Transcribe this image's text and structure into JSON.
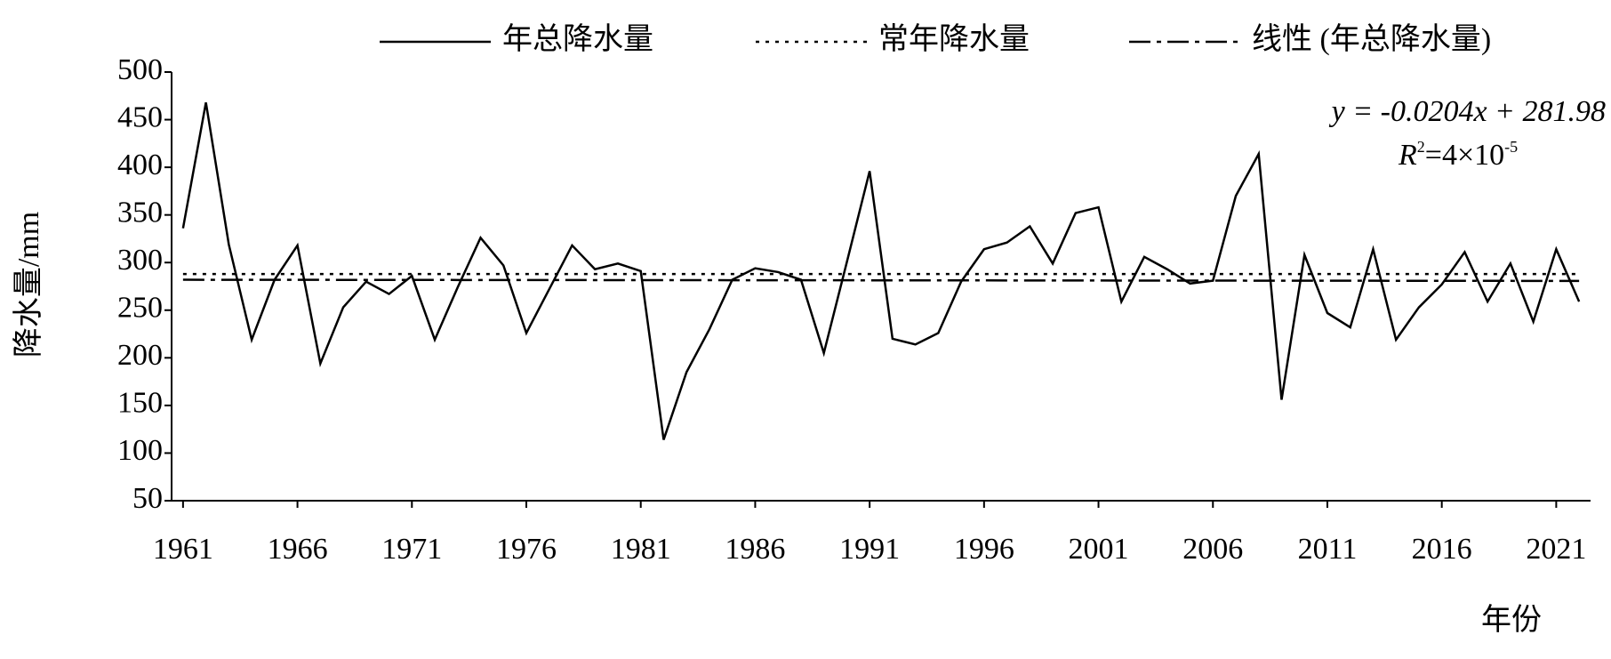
{
  "chart_data": {
    "type": "line",
    "x_label": "年份",
    "y_label": "降水量/mm",
    "x": [
      1961,
      1962,
      1963,
      1964,
      1965,
      1966,
      1967,
      1968,
      1969,
      1970,
      1971,
      1972,
      1973,
      1974,
      1975,
      1976,
      1977,
      1978,
      1979,
      1980,
      1981,
      1982,
      1983,
      1984,
      1985,
      1986,
      1987,
      1988,
      1989,
      1990,
      1991,
      1992,
      1993,
      1994,
      1995,
      1996,
      1997,
      1998,
      1999,
      2000,
      2001,
      2002,
      2003,
      2004,
      2005,
      2006,
      2007,
      2008,
      2009,
      2010,
      2011,
      2012,
      2013,
      2014,
      2015,
      2016,
      2017,
      2018,
      2019,
      2020,
      2021,
      2022
    ],
    "series": [
      {
        "name": "年总降水量",
        "color": "#000000",
        "style": "solid",
        "values": [
          336,
          468,
          319,
          219,
          282,
          318,
          194,
          253,
          280,
          267,
          286,
          219,
          274,
          326,
          297,
          226,
          272,
          318,
          293,
          299,
          291,
          114,
          185,
          230,
          282,
          294,
          290,
          282,
          205,
          300,
          396,
          220,
          214,
          226,
          280,
          314,
          321,
          338,
          299,
          352,
          358,
          259,
          306,
          293,
          278,
          281,
          370,
          414,
          156,
          308,
          247,
          232,
          314,
          219,
          253,
          277,
          311,
          259,
          299,
          238,
          314,
          259
        ]
      },
      {
        "name": "常年降水量",
        "color": "#000000",
        "style": "dotted",
        "values": [
          288,
          288,
          288,
          288,
          288,
          288,
          288,
          288,
          288,
          288,
          288,
          288,
          288,
          288,
          288,
          288,
          288,
          288,
          288,
          288,
          288,
          288,
          288,
          288,
          288,
          288,
          288,
          288,
          288,
          288,
          288,
          288,
          288,
          288,
          288,
          288,
          288,
          288,
          288,
          288,
          288,
          288,
          288,
          288,
          288,
          288,
          288,
          288,
          288,
          288,
          288,
          288,
          288,
          288,
          288,
          288,
          288,
          288,
          288,
          288,
          288,
          288
        ]
      },
      {
        "name": "线性 (年总降水量)",
        "color": "#000000",
        "style": "dashdot",
        "values": [
          281.96,
          281.94,
          281.92,
          281.9,
          281.88,
          281.86,
          281.84,
          281.82,
          281.8,
          281.78,
          281.76,
          281.74,
          281.71,
          281.69,
          281.67,
          281.65,
          281.63,
          281.61,
          281.59,
          281.57,
          281.55,
          281.53,
          281.51,
          281.49,
          281.47,
          281.45,
          281.43,
          281.41,
          281.39,
          281.37,
          281.35,
          281.33,
          281.31,
          281.29,
          281.27,
          281.25,
          281.23,
          281.2,
          281.18,
          281.16,
          281.14,
          281.12,
          281.1,
          281.08,
          281.06,
          281.04,
          281.02,
          281.0,
          280.98,
          280.96,
          280.94,
          280.92,
          280.9,
          280.88,
          280.86,
          280.84,
          280.82,
          280.8,
          280.78,
          280.76,
          280.74,
          280.72
        ]
      }
    ],
    "annotations": {
      "equation": "y = -0.0204x + 281.98",
      "r2": [
        "R",
        "2",
        "=4×10",
        "-5"
      ]
    },
    "xlim": [
      1960.5,
      2022.5
    ],
    "xticks": [
      1961,
      1966,
      1971,
      1976,
      1981,
      1986,
      1991,
      1996,
      2001,
      2006,
      2011,
      2016,
      2021
    ],
    "ylim": [
      50,
      500
    ],
    "yticks": [
      50,
      100,
      150,
      200,
      250,
      300,
      350,
      400,
      450,
      500
    ],
    "legend": "top",
    "grid": false
  }
}
